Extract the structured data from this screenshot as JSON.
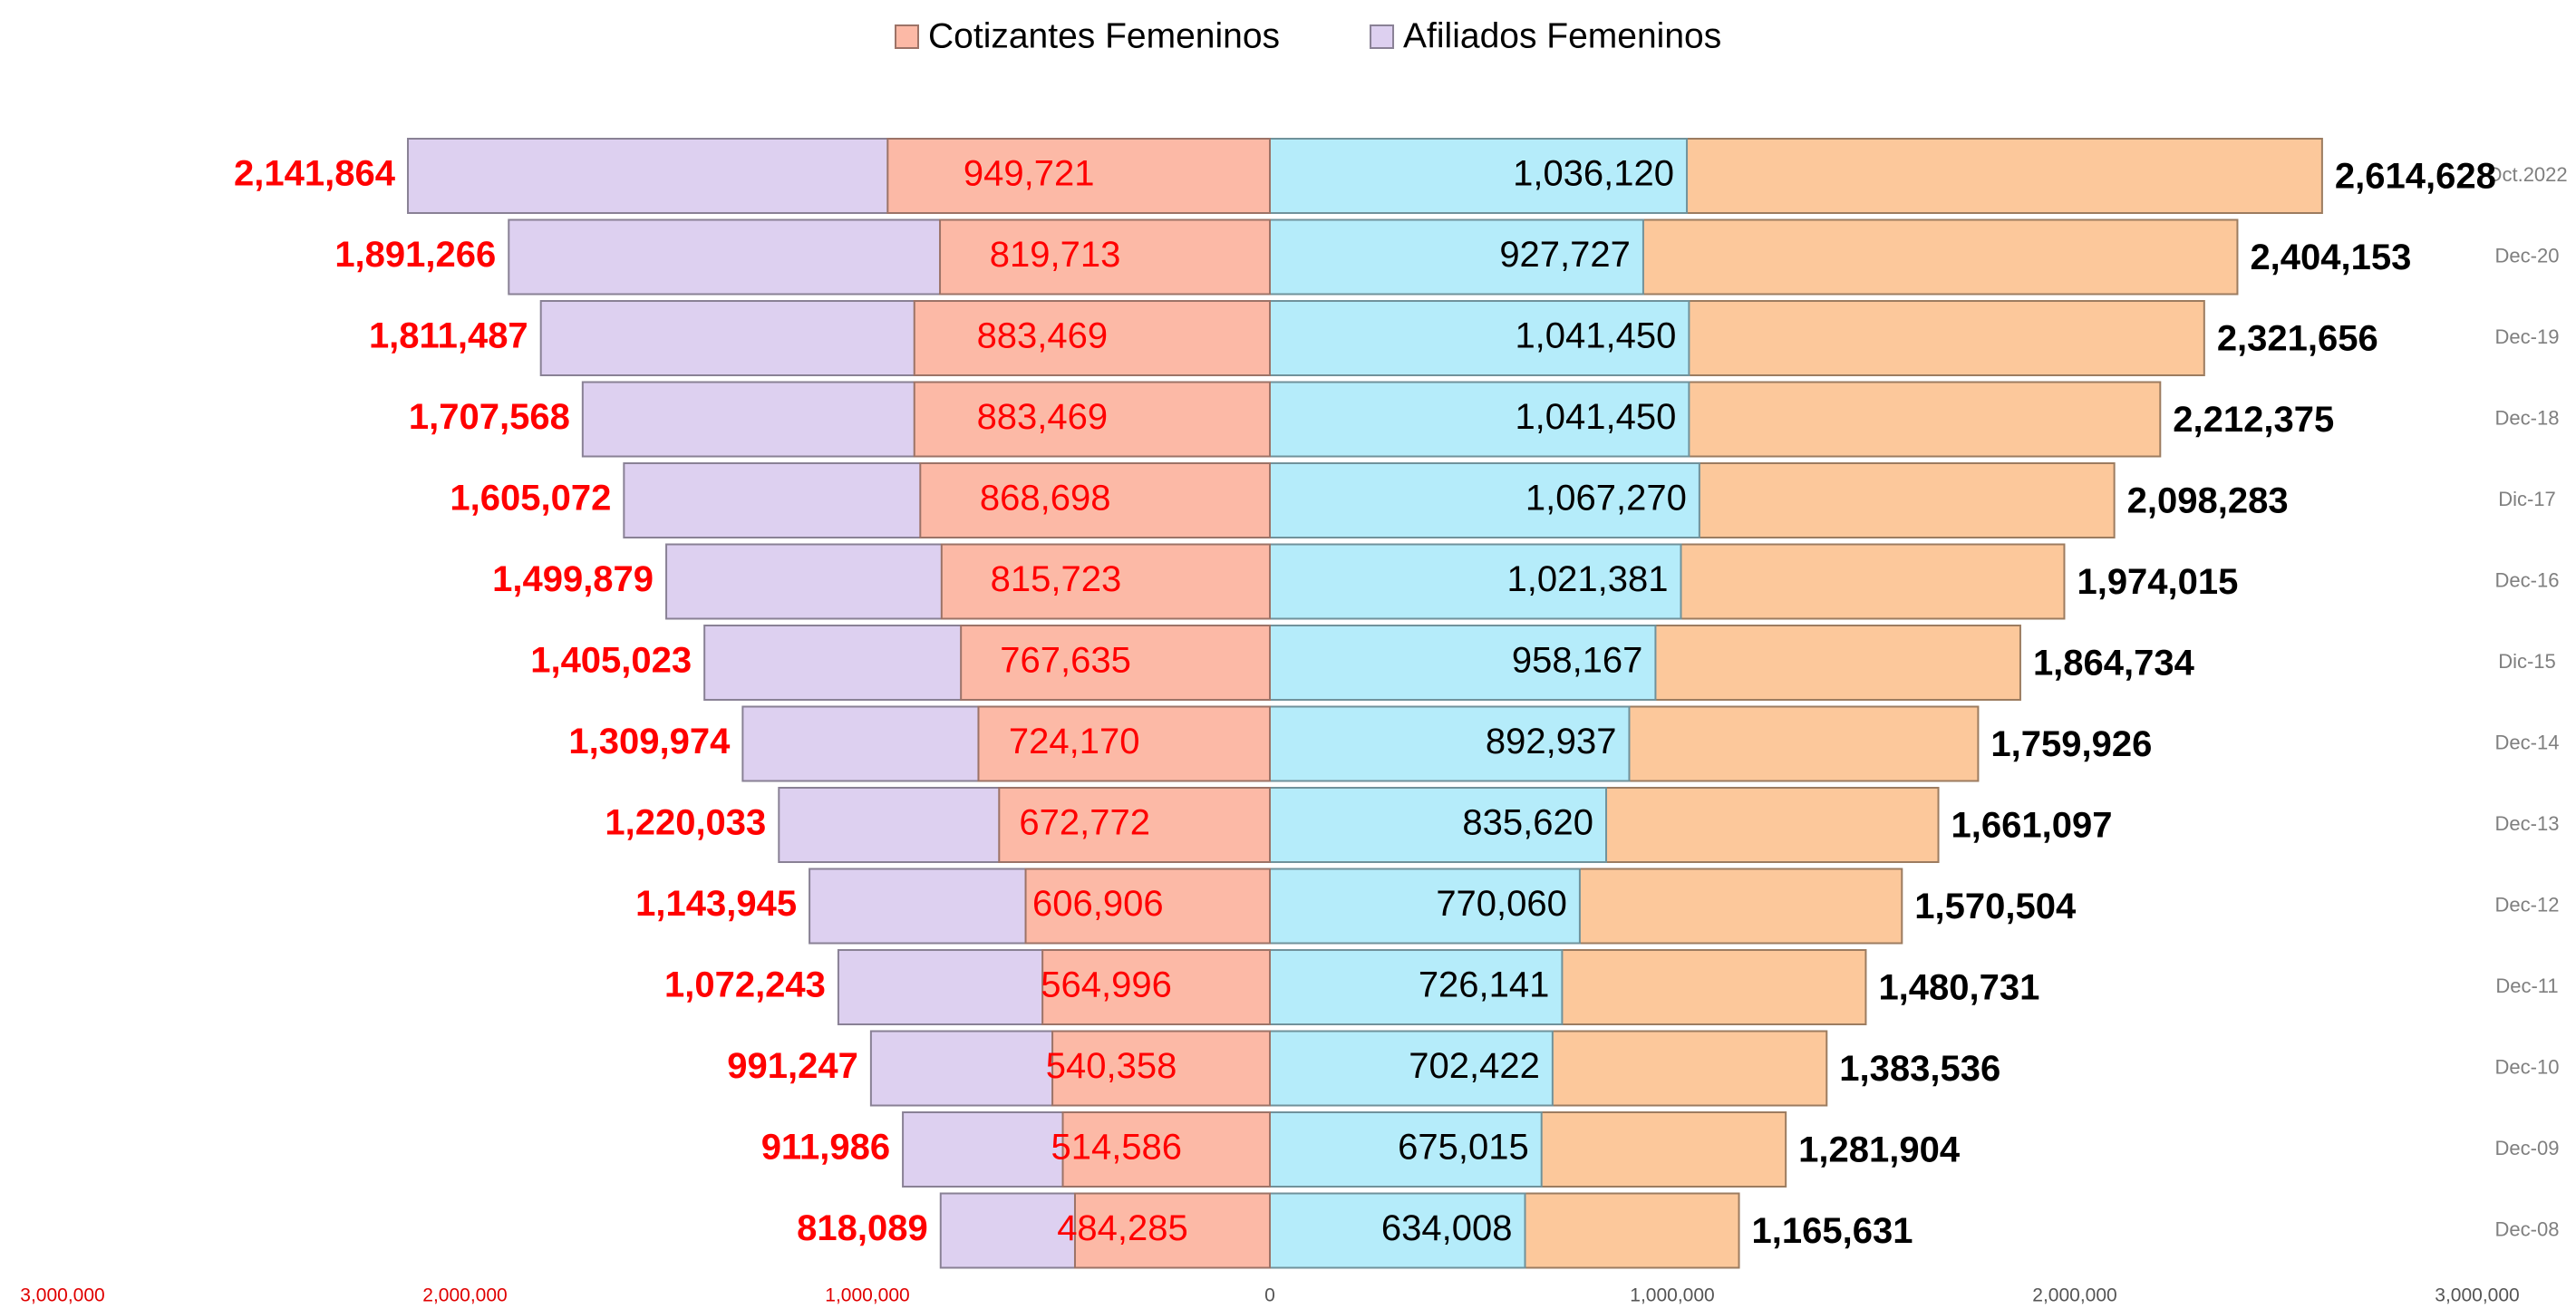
{
  "chart_data": {
    "type": "pyramid",
    "categories": [
      "Oct.2022",
      "Dec-20",
      "Dec-19",
      "Dec-18",
      "Dic-17",
      "Dec-16",
      "Dic-15",
      "Dec-14",
      "Dec-13",
      "Dec-12",
      "Dec-11",
      "Dec-10",
      "Dec-09",
      "Dec-08"
    ],
    "series": [
      {
        "name": "Cotizantes Femeninos",
        "color": "#fcb9a6",
        "values": [
          -949721,
          -819713,
          -883469,
          -883469,
          -868698,
          -815723,
          -767635,
          -724170,
          -672772,
          -606906,
          -564996,
          -540358,
          -514586,
          -484285
        ],
        "value_labels": [
          "949,721",
          "819,713",
          "883,469",
          "883,469",
          "868,698",
          "815,723",
          "767,635",
          "724,170",
          "672,772",
          "606,906",
          "564,996",
          "540,358",
          "514,586",
          "484,285"
        ]
      },
      {
        "name": "Afiliados Femeninos",
        "color": "#ddd0f0",
        "values": [
          -2141864,
          -1891266,
          -1811487,
          -1707568,
          -1605072,
          -1499879,
          -1405023,
          -1309974,
          -1220033,
          -1143945,
          -1072243,
          -991247,
          -911986,
          -818089
        ],
        "value_labels": [
          "2,141,864",
          "1,891,266",
          "1,811,487",
          "1,707,568",
          "1,605,072",
          "1,499,879",
          "1,405,023",
          "1,309,974",
          "1,220,033",
          "1,143,945",
          "1,072,243",
          "991,247",
          "911,986",
          "818,089"
        ]
      },
      {
        "color": "#b5ecfa",
        "values": [
          1036120,
          927727,
          1041450,
          1041450,
          1067270,
          1021381,
          958167,
          892937,
          835620,
          770060,
          726141,
          702422,
          675015,
          634008
        ],
        "value_labels": [
          "1,036,120",
          "927,727",
          "1,041,450",
          "1,041,450",
          "1,067,270",
          "1,021,381",
          "958,167",
          "892,937",
          "835,620",
          "770,060",
          "726,141",
          "702,422",
          "675,015",
          "634,008"
        ]
      },
      {
        "color": "#fcc89b",
        "values": [
          2614628,
          2404153,
          2321656,
          2212375,
          2098283,
          1974015,
          1864734,
          1759926,
          1661097,
          1570504,
          1480731,
          1383536,
          1281904,
          1165631
        ],
        "value_labels": [
          "2,614,628",
          "2,404,153",
          "2,321,656",
          "2,212,375",
          "2,098,283",
          "1,974,015",
          "1,864,734",
          "1,759,926",
          "1,661,097",
          "1,570,504",
          "1,480,731",
          "1,383,536",
          "1,281,904",
          "1,165,631"
        ]
      }
    ],
    "xlim": [
      -3000000,
      3000000
    ],
    "xticks": [
      {
        "value": -3000000,
        "label": "3,000,000"
      },
      {
        "value": -2000000,
        "label": "2,000,000"
      },
      {
        "value": -1000000,
        "label": "1,000,000"
      },
      0,
      {
        "value": 1000000,
        "label": "1,000,000"
      },
      {
        "value": 2000000,
        "label": "2,000,000"
      },
      {
        "value": 3000000,
        "label": "3,000,000"
      }
    ],
    "legend": "top"
  }
}
